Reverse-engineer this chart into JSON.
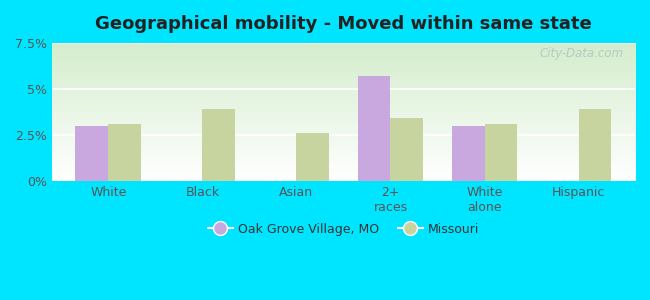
{
  "title": "Geographical mobility - Moved within same state",
  "categories": [
    "White",
    "Black",
    "Asian",
    "2+\nraces",
    "White\nalone",
    "Hispanic"
  ],
  "oak_grove_values": [
    3.0,
    null,
    null,
    5.7,
    3.0,
    null
  ],
  "missouri_values": [
    3.1,
    3.9,
    2.6,
    3.4,
    3.1,
    3.9
  ],
  "bar_color_oak": "#c9a8e0",
  "bar_color_missouri": "#c8d4a0",
  "ylim": [
    0,
    7.5
  ],
  "yticks": [
    0,
    2.5,
    5.0,
    7.5
  ],
  "ytick_labels": [
    "0%",
    "2.5%",
    "5%",
    "7.5%"
  ],
  "legend_oak": "Oak Grove Village, MO",
  "legend_missouri": "Missouri",
  "outer_bg": "#00e5ff",
  "watermark": "City-Data.com",
  "bar_width": 0.35
}
